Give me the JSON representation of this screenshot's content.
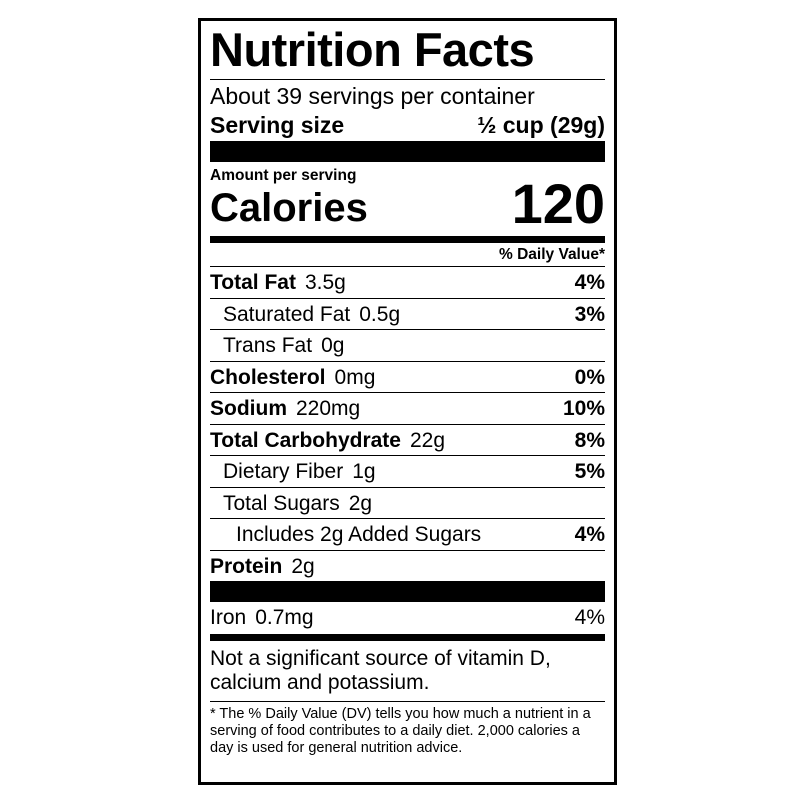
{
  "title": "Nutrition Facts",
  "servings_per_container": "About 39 servings per container",
  "serving_size": {
    "label": "Serving size",
    "value": "½ cup (29g)"
  },
  "amount_per_serving": "Amount per serving",
  "calories": {
    "label": "Calories",
    "value": "120"
  },
  "daily_value_header": "% Daily Value*",
  "nutrients": [
    {
      "name": "Total Fat",
      "amount": "3.5g",
      "dv": "4%",
      "bold": true,
      "indent": 0
    },
    {
      "name": "Saturated Fat",
      "amount": "0.5g",
      "dv": "3%",
      "bold": false,
      "indent": 1
    },
    {
      "name": "Trans Fat",
      "amount": "0g",
      "dv": "",
      "bold": false,
      "indent": 1
    },
    {
      "name": "Cholesterol",
      "amount": "0mg",
      "dv": "0%",
      "bold": true,
      "indent": 0
    },
    {
      "name": "Sodium",
      "amount": "220mg",
      "dv": "10%",
      "bold": true,
      "indent": 0
    },
    {
      "name": "Total Carbohydrate",
      "amount": "22g",
      "dv": "8%",
      "bold": true,
      "indent": 0
    },
    {
      "name": "Dietary Fiber",
      "amount": "1g",
      "dv": "5%",
      "bold": false,
      "indent": 1
    },
    {
      "name": "Total Sugars",
      "amount": "2g",
      "dv": "",
      "bold": false,
      "indent": 1
    },
    {
      "name": "Includes 2g Added Sugars",
      "amount": "",
      "dv": "4%",
      "bold": false,
      "indent": 2
    },
    {
      "name": "Protein",
      "amount": "2g",
      "dv": "",
      "bold": true,
      "indent": 0
    }
  ],
  "vitamins": [
    {
      "name": "Iron",
      "amount": "0.7mg",
      "dv": "4%"
    }
  ],
  "note": "Not a significant source of vitamin D, calcium and potassium.",
  "footnote": "* The % Daily Value (DV) tells you how much a nutrient in a serving of food contributes to a daily diet. 2,000 calories a day is used for general nutrition advice."
}
